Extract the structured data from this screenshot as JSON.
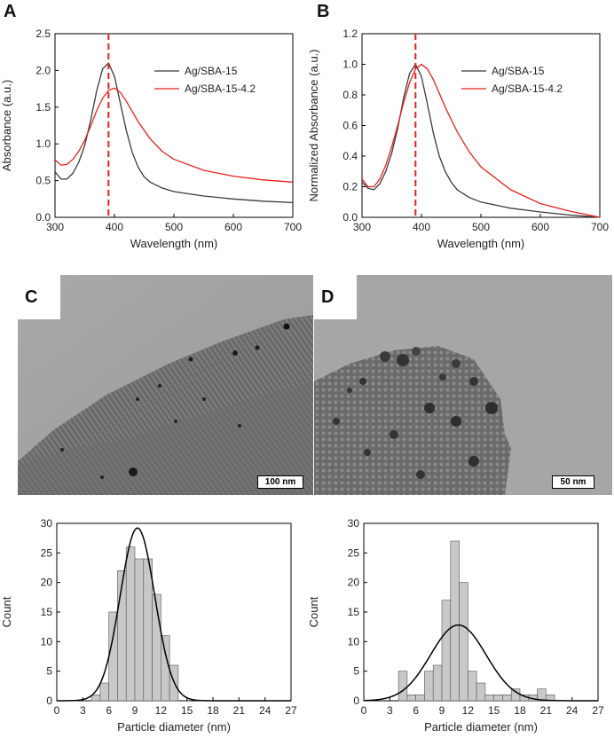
{
  "panels": {
    "A": "A",
    "B": "B",
    "C": "C",
    "D": "D"
  },
  "scale_bars": {
    "c": "100 nm",
    "d": "50 nm"
  },
  "chart_data": [
    {
      "id": "A",
      "type": "line",
      "xlabel": "Wavelength (nm)",
      "ylabel": "Absorbance (a.u.)",
      "xlim": [
        300,
        700
      ],
      "ylim": [
        0,
        2.5
      ],
      "xticks": [
        "300",
        "400",
        "500",
        "600",
        "700"
      ],
      "yticks": [
        "0.0",
        "0.5",
        "1.0",
        "1.5",
        "2.0",
        "2.5"
      ],
      "vline": {
        "x": 390,
        "color": "#e8211c",
        "style": "dashed"
      },
      "legend_position": "top-right",
      "series": [
        {
          "name": "Ag/SBA-15",
          "color": "#3a3a3a",
          "x": [
            300,
            310,
            320,
            330,
            340,
            350,
            360,
            370,
            380,
            390,
            400,
            410,
            420,
            430,
            440,
            450,
            460,
            480,
            500,
            550,
            600,
            650,
            700
          ],
          "y": [
            0.62,
            0.52,
            0.52,
            0.6,
            0.75,
            0.98,
            1.32,
            1.72,
            2.02,
            2.1,
            1.92,
            1.55,
            1.18,
            0.88,
            0.68,
            0.55,
            0.48,
            0.4,
            0.35,
            0.29,
            0.25,
            0.22,
            0.2
          ]
        },
        {
          "name": "Ag/SBA-15-4.2",
          "color": "#e8211c",
          "x": [
            300,
            310,
            320,
            330,
            340,
            350,
            360,
            370,
            380,
            390,
            400,
            410,
            420,
            440,
            460,
            480,
            500,
            550,
            600,
            650,
            700
          ],
          "y": [
            0.78,
            0.71,
            0.72,
            0.79,
            0.9,
            1.05,
            1.24,
            1.45,
            1.62,
            1.73,
            1.76,
            1.7,
            1.58,
            1.3,
            1.07,
            0.9,
            0.79,
            0.64,
            0.56,
            0.51,
            0.48
          ]
        }
      ]
    },
    {
      "id": "B",
      "type": "line",
      "xlabel": "Wavelength (nm)",
      "ylabel": "Normalized Absorbance (a.u.)",
      "xlim": [
        300,
        700
      ],
      "ylim": [
        0,
        1.2
      ],
      "xticks": [
        "300",
        "400",
        "500",
        "600",
        "700"
      ],
      "yticks": [
        "0.0",
        "0.2",
        "0.4",
        "0.6",
        "0.8",
        "1.0",
        "1.2"
      ],
      "vline": {
        "x": 390,
        "color": "#e8211c",
        "style": "dashed"
      },
      "legend_position": "top-right",
      "series": [
        {
          "name": "Ag/SBA-15",
          "color": "#3a3a3a",
          "x": [
            300,
            310,
            320,
            330,
            340,
            350,
            360,
            370,
            380,
            390,
            400,
            410,
            420,
            430,
            440,
            450,
            460,
            480,
            500,
            550,
            600,
            650,
            700
          ],
          "y": [
            0.23,
            0.19,
            0.18,
            0.22,
            0.3,
            0.42,
            0.58,
            0.78,
            0.94,
            1.0,
            0.92,
            0.74,
            0.55,
            0.4,
            0.3,
            0.23,
            0.18,
            0.13,
            0.1,
            0.06,
            0.035,
            0.015,
            0.0
          ]
        },
        {
          "name": "Ag/SBA-15-4.2",
          "color": "#e8211c",
          "x": [
            300,
            310,
            320,
            330,
            340,
            350,
            360,
            370,
            380,
            390,
            400,
            410,
            420,
            440,
            460,
            480,
            500,
            550,
            600,
            650,
            700
          ],
          "y": [
            0.25,
            0.2,
            0.2,
            0.25,
            0.34,
            0.46,
            0.6,
            0.75,
            0.88,
            0.97,
            1.0,
            0.97,
            0.9,
            0.72,
            0.56,
            0.43,
            0.33,
            0.18,
            0.09,
            0.04,
            0.0
          ]
        }
      ]
    },
    {
      "id": "C",
      "type": "bar",
      "xlabel": "Particle diameter (nm)",
      "ylabel": "Count",
      "xlim": [
        0,
        27
      ],
      "ylim": [
        0,
        30
      ],
      "xticks": [
        "0",
        "3",
        "6",
        "9",
        "12",
        "15",
        "18",
        "21",
        "24",
        "27"
      ],
      "yticks": [
        "0",
        "5",
        "10",
        "15",
        "20",
        "25",
        "30"
      ],
      "bin_width": 1,
      "bins_start": [
        4,
        5,
        6,
        7,
        8,
        9,
        10,
        11,
        12,
        13
      ],
      "counts": [
        1,
        3,
        15,
        22,
        26,
        24,
        24,
        18,
        11,
        6
      ],
      "fit": {
        "type": "gaussian",
        "amplitude": 29.2,
        "mean": 9.3,
        "sigma": 2.0
      }
    },
    {
      "id": "D",
      "type": "bar",
      "xlabel": "Particle diameter (nm)",
      "ylabel": "Count",
      "xlim": [
        0,
        27
      ],
      "ylim": [
        0,
        30
      ],
      "xticks": [
        "0",
        "3",
        "6",
        "9",
        "12",
        "15",
        "18",
        "21",
        "24",
        "27"
      ],
      "yticks": [
        "0",
        "5",
        "10",
        "15",
        "20",
        "25",
        "30"
      ],
      "bin_width": 1,
      "bins_start": [
        4,
        5,
        6,
        7,
        8,
        9,
        10,
        11,
        12,
        13,
        14,
        15,
        16,
        17,
        18,
        19,
        20,
        21
      ],
      "counts": [
        5,
        1,
        1,
        5,
        6,
        17,
        27,
        20,
        5,
        3,
        1,
        1,
        1,
        2,
        1,
        1,
        2,
        1
      ],
      "fit": {
        "type": "gaussian",
        "amplitude": 12.8,
        "mean": 10.9,
        "sigma": 3.2
      }
    }
  ]
}
